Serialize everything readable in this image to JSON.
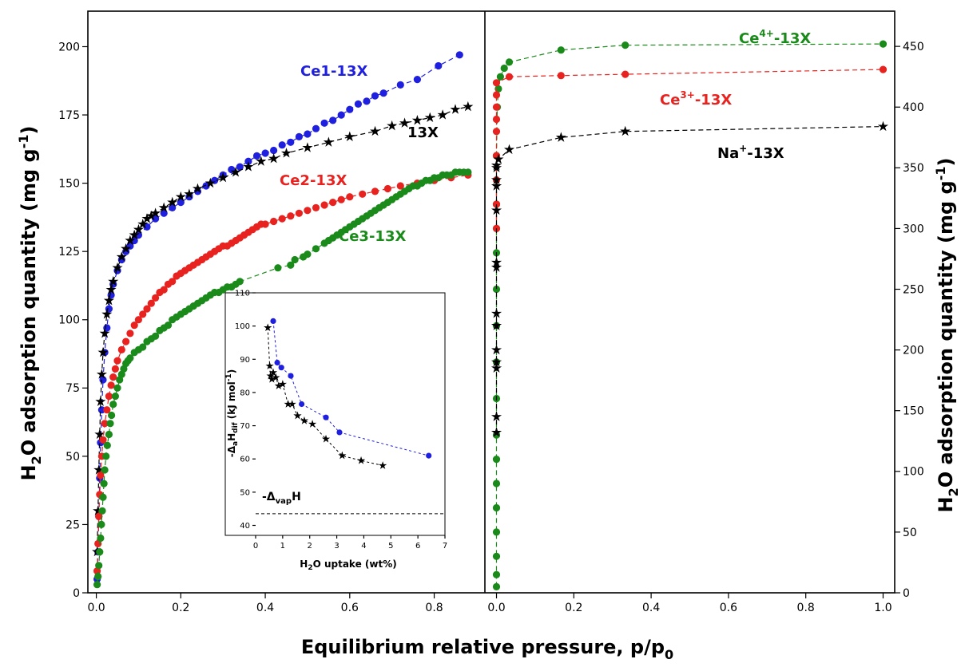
{
  "colors": {
    "ce1": "#1f1fdf",
    "ce2": "#e8231f",
    "ce3": "#1a8a1a",
    "x13": "#000000"
  },
  "chart_data": [
    {
      "type": "scatter",
      "panel": "left",
      "xlim": [
        -0.02,
        0.92
      ],
      "ylim": [
        0,
        213
      ],
      "xticks": [
        "0.0",
        "0.2",
        "0.4",
        "0.6",
        "0.8"
      ],
      "yticks": [
        "0",
        "25",
        "50",
        "75",
        "100",
        "125",
        "150",
        "175",
        "200"
      ],
      "xlabel": "Equilibrium relative pressure, p/p",
      "xlabel_sub": "0",
      "ylabel": {
        "a": "H",
        "sub": "2",
        "b": "O adsorption quantity (mg g",
        "sup": "-1",
        "c": ")"
      },
      "series": [
        {
          "name": "Ce1-13X",
          "marker": "circle",
          "color": "#1f1fdf",
          "x": [
            0.002,
            0.004,
            0.006,
            0.008,
            0.01,
            0.013,
            0.016,
            0.02,
            0.025,
            0.03,
            0.035,
            0.04,
            0.05,
            0.06,
            0.07,
            0.08,
            0.09,
            0.1,
            0.12,
            0.14,
            0.16,
            0.18,
            0.2,
            0.22,
            0.24,
            0.26,
            0.28,
            0.3,
            0.32,
            0.34,
            0.36,
            0.38,
            0.4,
            0.42,
            0.44,
            0.46,
            0.48,
            0.5,
            0.52,
            0.54,
            0.56,
            0.58,
            0.6,
            0.62,
            0.64,
            0.66,
            0.68,
            0.72,
            0.76,
            0.81,
            0.86
          ],
          "y": [
            5,
            15,
            28,
            42,
            55,
            67,
            78,
            88,
            97,
            104,
            109,
            113,
            118,
            122,
            125,
            127,
            129,
            131,
            134,
            137,
            139,
            141,
            143,
            145,
            147,
            149,
            151,
            153,
            155,
            156,
            158,
            160,
            161,
            162,
            164,
            165,
            167,
            168,
            170,
            172,
            173,
            175,
            177,
            179,
            180,
            182,
            183,
            186,
            188,
            193,
            197
          ]
        },
        {
          "name": "13X",
          "marker": "star",
          "color": "#000000",
          "x": [
            0.002,
            0.004,
            0.006,
            0.008,
            0.01,
            0.013,
            0.016,
            0.02,
            0.025,
            0.03,
            0.035,
            0.04,
            0.05,
            0.06,
            0.07,
            0.08,
            0.09,
            0.1,
            0.11,
            0.12,
            0.13,
            0.14,
            0.16,
            0.18,
            0.2,
            0.22,
            0.24,
            0.27,
            0.3,
            0.33,
            0.36,
            0.39,
            0.42,
            0.45,
            0.5,
            0.55,
            0.6,
            0.66,
            0.7,
            0.73,
            0.76,
            0.79,
            0.82,
            0.85,
            0.88
          ],
          "y": [
            15,
            30,
            45,
            58,
            70,
            80,
            88,
            95,
            102,
            107,
            111,
            114,
            119,
            123,
            126,
            129,
            131,
            133,
            135,
            137,
            138,
            139,
            141,
            143,
            145,
            146,
            148,
            150,
            152,
            154,
            156,
            158,
            159,
            161,
            163,
            165,
            167,
            169,
            171,
            172,
            173,
            174,
            175,
            177,
            178
          ]
        },
        {
          "name": "Ce2-13X",
          "marker": "circle",
          "color": "#e8231f",
          "x": [
            0.002,
            0.004,
            0.006,
            0.008,
            0.01,
            0.013,
            0.016,
            0.02,
            0.025,
            0.03,
            0.035,
            0.04,
            0.045,
            0.05,
            0.06,
            0.07,
            0.08,
            0.09,
            0.1,
            0.11,
            0.12,
            0.13,
            0.14,
            0.15,
            0.16,
            0.17,
            0.18,
            0.19,
            0.2,
            0.21,
            0.22,
            0.23,
            0.24,
            0.25,
            0.26,
            0.27,
            0.28,
            0.29,
            0.3,
            0.31,
            0.32,
            0.33,
            0.34,
            0.35,
            0.36,
            0.37,
            0.38,
            0.39,
            0.4,
            0.42,
            0.44,
            0.46,
            0.48,
            0.5,
            0.52,
            0.54,
            0.56,
            0.58,
            0.6,
            0.63,
            0.66,
            0.69,
            0.72,
            0.76,
            0.8,
            0.84,
            0.88
          ],
          "y": [
            8,
            18,
            28,
            36,
            43,
            50,
            56,
            62,
            67,
            72,
            76,
            79,
            82,
            85,
            89,
            92,
            95,
            98,
            100,
            102,
            104,
            106,
            108,
            110,
            111,
            113,
            114,
            116,
            117,
            118,
            119,
            120,
            121,
            122,
            123,
            124,
            125,
            126,
            127,
            127,
            128,
            129,
            130,
            131,
            132,
            133,
            134,
            135,
            135,
            136,
            137,
            138,
            139,
            140,
            141,
            142,
            143,
            144,
            145,
            146,
            147,
            148,
            149,
            150,
            151,
            152,
            153
          ]
        },
        {
          "name": "Ce3-13X",
          "marker": "circle",
          "color": "#1a8a1a",
          "x": [
            0.002,
            0.004,
            0.006,
            0.008,
            0.01,
            0.012,
            0.014,
            0.016,
            0.018,
            0.02,
            0.023,
            0.026,
            0.03,
            0.033,
            0.036,
            0.04,
            0.045,
            0.05,
            0.055,
            0.06,
            0.065,
            0.07,
            0.075,
            0.08,
            0.09,
            0.1,
            0.11,
            0.12,
            0.13,
            0.14,
            0.15,
            0.16,
            0.17,
            0.18,
            0.19,
            0.2,
            0.21,
            0.22,
            0.23,
            0.24,
            0.25,
            0.26,
            0.27,
            0.28,
            0.29,
            0.3,
            0.31,
            0.32,
            0.33,
            0.34,
            0.43,
            0.46,
            0.47,
            0.49,
            0.5,
            0.52,
            0.54,
            0.55,
            0.56,
            0.57,
            0.58,
            0.59,
            0.6,
            0.61,
            0.62,
            0.63,
            0.64,
            0.65,
            0.66,
            0.67,
            0.68,
            0.69,
            0.7,
            0.71,
            0.72,
            0.73,
            0.74,
            0.75,
            0.76,
            0.77,
            0.78,
            0.79,
            0.8,
            0.81,
            0.82,
            0.83,
            0.84,
            0.85,
            0.86,
            0.87,
            0.88
          ],
          "y": [
            3,
            6,
            10,
            15,
            20,
            25,
            30,
            35,
            40,
            45,
            50,
            54,
            58,
            62,
            65,
            69,
            72,
            75,
            78,
            80,
            82,
            84,
            85,
            86,
            88,
            89,
            90,
            92,
            93,
            94,
            96,
            97,
            98,
            100,
            101,
            102,
            103,
            104,
            105,
            106,
            107,
            108,
            109,
            110,
            110,
            111,
            112,
            112,
            113,
            114,
            119,
            120,
            122,
            123,
            124,
            126,
            128,
            129,
            130,
            131,
            132,
            133,
            134,
            135,
            136,
            137,
            138,
            139,
            140,
            141,
            142,
            143,
            144,
            145,
            146,
            147,
            148,
            149,
            149,
            150,
            151,
            151,
            152,
            152,
            153,
            153,
            153,
            154,
            154,
            154,
            154
          ]
        }
      ],
      "labels": [
        {
          "text": "Ce1-13X",
          "color": "#1f1fdf"
        },
        {
          "text": "13X",
          "color": "#000000"
        },
        {
          "text": "Ce2-13X",
          "color": "#e8231f"
        },
        {
          "text": "Ce3-13X",
          "color": "#1a8a1a"
        }
      ]
    },
    {
      "type": "scatter",
      "panel": "right",
      "xlim": [
        -0.03,
        1.03
      ],
      "ylim": [
        0,
        479
      ],
      "xticks": [
        "0.0",
        "0.2",
        "0.4",
        "0.6",
        "0.8",
        "1.0"
      ],
      "yticks": [
        "0",
        "50",
        "100",
        "150",
        "200",
        "250",
        "300",
        "350",
        "400",
        "450"
      ],
      "ylabel": {
        "a": "H",
        "sub": "2",
        "b": "O adsorption quantity (mg g",
        "sup": "-1",
        "c": ")"
      },
      "series": [
        {
          "name": "Ce4+-13X",
          "marker": "circle",
          "color": "#1a8a1a",
          "x": [
            0,
            0,
            0,
            0,
            0,
            0,
            0,
            0,
            0,
            0,
            0,
            0,
            0,
            0,
            0,
            0,
            0.002,
            0.005,
            0.01,
            0.02,
            0.033,
            0.167,
            0.333,
            1.0
          ],
          "y": [
            5,
            15,
            30,
            50,
            70,
            90,
            110,
            130,
            160,
            190,
            220,
            250,
            280,
            300,
            320,
            360,
            400,
            415,
            425,
            432,
            437,
            447,
            451,
            452
          ]
        },
        {
          "name": "Ce3+-13X",
          "marker": "circle",
          "color": "#e8231f",
          "x": [
            0,
            0,
            0,
            0,
            0,
            0,
            0,
            0,
            0,
            0.033,
            0.167,
            0.333,
            1.0
          ],
          "y": [
            300,
            320,
            340,
            360,
            380,
            390,
            400,
            410,
            420,
            425,
            426,
            427,
            431
          ]
        },
        {
          "name": "Na+-13X",
          "marker": "star",
          "color": "#000000",
          "x": [
            0,
            0,
            0,
            0,
            0,
            0,
            0,
            0,
            0,
            0,
            0,
            0,
            0,
            0,
            0.005,
            0.033,
            0.167,
            0.333,
            1.0
          ],
          "y": [
            132,
            145,
            185,
            190,
            200,
            220,
            230,
            268,
            272,
            315,
            335,
            340,
            350,
            352,
            357,
            365,
            375,
            380,
            384
          ]
        }
      ],
      "labels": [
        {
          "text": "Ce",
          "sup": "4+",
          "tail": "-13X",
          "color": "#1a8a1a"
        },
        {
          "text": "Ce",
          "sup": "3+",
          "tail": "-13X",
          "color": "#e8231f"
        },
        {
          "text": "Na",
          "sup": "+",
          "tail": "-13X",
          "color": "#000000"
        }
      ]
    },
    {
      "type": "scatter",
      "panel": "inset",
      "xlim": [
        0,
        7
      ],
      "ylim": [
        37,
        110
      ],
      "xticks": [
        "0",
        "1",
        "2",
        "3",
        "4",
        "5",
        "6",
        "7"
      ],
      "yticks": [
        "40",
        "50",
        "60",
        "70",
        "80",
        "90",
        "100",
        "110"
      ],
      "xlabel": {
        "a": "H",
        "sub": "2",
        "b": "O uptake (wt%)"
      },
      "ylabel": {
        "a": "-Δ",
        "sub1": "a",
        "b": "H",
        "sub2": "dif",
        "c": " (kJ mol",
        "sup": "-1",
        "d": ")"
      },
      "reference": {
        "label": {
          "a": "-Δ",
          "sub": "vap",
          "b": "H"
        },
        "y": 43.5
      },
      "series": [
        {
          "name": "Ce1-13X",
          "marker": "circle",
          "color": "#1f1fdf",
          "x": [
            0.65,
            0.8,
            0.95,
            1.3,
            1.7,
            2.6,
            3.1,
            6.4
          ],
          "y": [
            101.5,
            89,
            87.5,
            85,
            76.5,
            72.5,
            68,
            61
          ]
        },
        {
          "name": "13X",
          "marker": "star",
          "color": "#000000",
          "x": [
            0.45,
            0.52,
            0.55,
            0.6,
            0.65,
            0.75,
            0.85,
            1.0,
            1.2,
            1.35,
            1.55,
            1.8,
            2.1,
            2.6,
            3.2,
            3.9,
            4.7
          ],
          "y": [
            99.5,
            88,
            85,
            84,
            86,
            84.5,
            82,
            82.5,
            76.5,
            76.5,
            73,
            71.5,
            70.5,
            66,
            61,
            59.5,
            58
          ]
        }
      ]
    }
  ]
}
